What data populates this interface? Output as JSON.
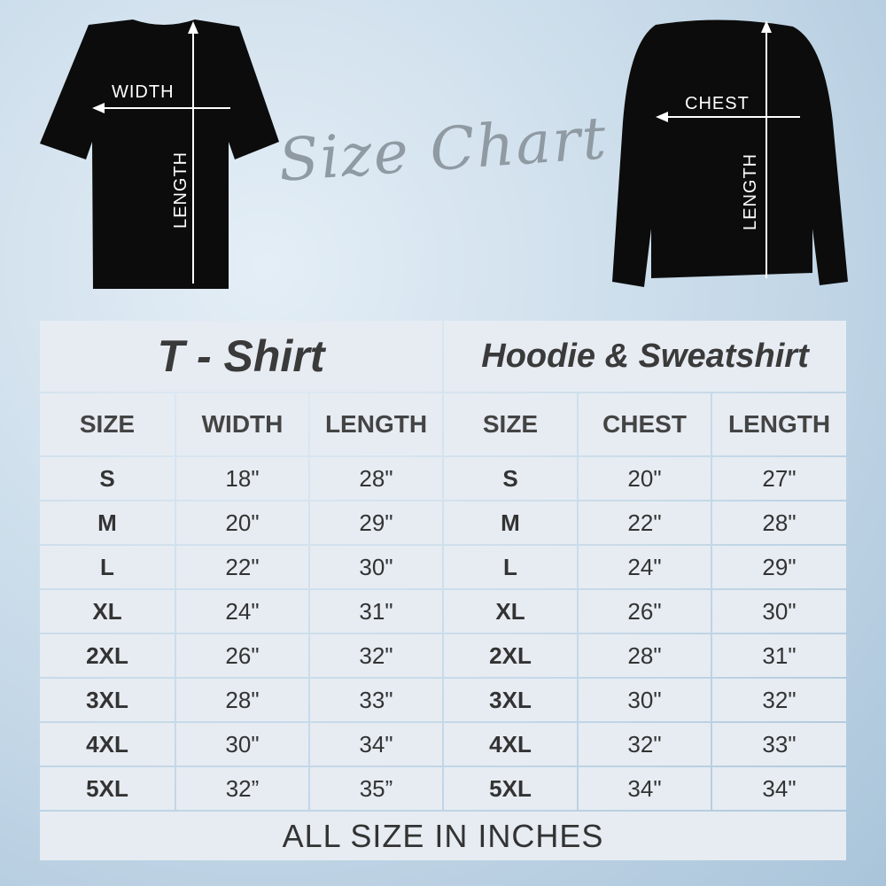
{
  "title": "Size Chart",
  "tshirt_labels": {
    "width": "WIDTH",
    "length": "LENGTH"
  },
  "sweatshirt_labels": {
    "chest": "CHEST",
    "length": "LENGTH"
  },
  "tables": [
    {
      "title": "T - Shirt",
      "headers": [
        "SIZE",
        "WIDTH",
        "LENGTH"
      ],
      "rows": [
        [
          "S",
          "18\"",
          "28\""
        ],
        [
          "M",
          "20\"",
          "29\""
        ],
        [
          "L",
          "22\"",
          "30\""
        ],
        [
          "XL",
          "24\"",
          "31\""
        ],
        [
          "2XL",
          "26\"",
          "32\""
        ],
        [
          "3XL",
          "28\"",
          "33\""
        ],
        [
          "4XL",
          "30\"",
          "34\""
        ],
        [
          "5XL",
          "32”",
          "35”"
        ]
      ]
    },
    {
      "title": "Hoodie & Sweatshirt",
      "headers": [
        "SIZE",
        "CHEST",
        "LENGTH"
      ],
      "rows": [
        [
          "S",
          "20\"",
          "27\""
        ],
        [
          "M",
          "22\"",
          "28\""
        ],
        [
          "L",
          "24\"",
          "29\""
        ],
        [
          "XL",
          "26\"",
          "30\""
        ],
        [
          "2XL",
          "28\"",
          "31\""
        ],
        [
          "3XL",
          "30\"",
          "32\""
        ],
        [
          "4XL",
          "32\"",
          "33\""
        ],
        [
          "5XL",
          "34\"",
          "34\""
        ]
      ]
    }
  ],
  "footer": "ALL SIZE IN INCHES"
}
